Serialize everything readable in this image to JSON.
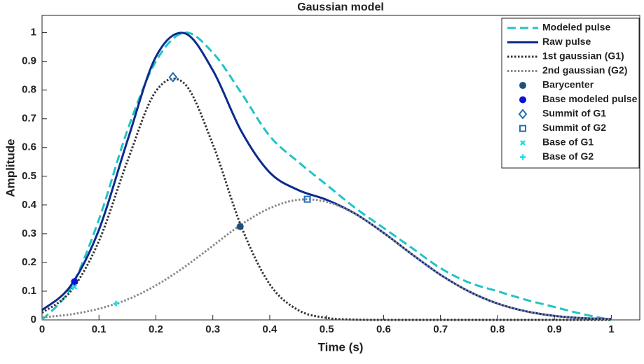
{
  "chart_data": {
    "type": "line",
    "title": "Gaussian model",
    "x_label": "Time (s)",
    "y_label": "Amplitude",
    "xlim": [
      0,
      1.05
    ],
    "ylim": [
      0,
      1.06
    ],
    "xticks": [
      0,
      0.1,
      0.2,
      0.3,
      0.4,
      0.5,
      0.6,
      0.7,
      0.8,
      0.9,
      1
    ],
    "yticks": [
      0,
      0.1,
      0.2,
      0.3,
      0.4,
      0.5,
      0.6,
      0.7,
      0.8,
      0.9,
      1
    ],
    "legend": "upper right",
    "x": [
      0,
      0.05,
      0.1,
      0.15,
      0.2,
      0.25,
      0.3,
      0.35,
      0.4,
      0.45,
      0.5,
      0.55,
      0.6,
      0.65,
      0.7,
      0.75,
      0.8,
      0.85,
      0.9,
      0.95,
      1
    ],
    "series": [
      {
        "name": "Modeled pulse",
        "color": "#22c3c6",
        "style": "dashed",
        "values": [
          0,
          0.11,
          0.35,
          0.66,
          0.9,
          1.0,
          0.93,
          0.79,
          0.64,
          0.55,
          0.47,
          0.39,
          0.32,
          0.25,
          0.18,
          0.13,
          0.1,
          0.07,
          0.045,
          0.02,
          0
        ]
      },
      {
        "name": "Raw pulse",
        "color": "#0b2b8c",
        "style": "solid",
        "values": [
          0.034,
          0.118,
          0.314,
          0.624,
          0.916,
          0.998,
          0.869,
          0.657,
          0.513,
          0.452,
          0.418,
          0.37,
          0.303,
          0.228,
          0.157,
          0.099,
          0.057,
          0.03,
          0.014,
          0.006,
          0.003
        ]
      },
      {
        "name": "1st gaussian (G1)",
        "color": "#333333",
        "style": "dotted",
        "values": [
          0.025,
          0.099,
          0.275,
          0.553,
          0.796,
          0.823,
          0.611,
          0.325,
          0.124,
          0.034,
          0.007,
          0.001,
          0,
          0,
          0,
          0,
          0,
          0,
          0,
          0,
          0
        ]
      },
      {
        "name": "2nd gaussian (G2)",
        "color": "#888888",
        "style": "dotted",
        "values": [
          0.009,
          0.019,
          0.039,
          0.071,
          0.12,
          0.184,
          0.258,
          0.332,
          0.389,
          0.418,
          0.411,
          0.369,
          0.303,
          0.228,
          0.157,
          0.099,
          0.057,
          0.03,
          0.014,
          0.006,
          0.003
        ]
      }
    ],
    "markers": [
      {
        "name": "Barycenter",
        "color": "#1f4e79",
        "marker": "star",
        "x": 0.348,
        "y": 0.325
      },
      {
        "name": "Base modeled pulse",
        "color": "#0a14d4",
        "marker": "circle",
        "x": 0.057,
        "y": 0.133
      },
      {
        "name": "Summit of G1",
        "color": "#1f6fb5",
        "marker": "diamond",
        "x": 0.23,
        "y": 0.845
      },
      {
        "name": "Summit of G2",
        "color": "#1f6fb5",
        "marker": "square",
        "x": 0.466,
        "y": 0.42
      },
      {
        "name": "Base of G1",
        "color": "#11e0f0",
        "marker": "x",
        "x": 0.057,
        "y": 0.115
      },
      {
        "name": "Base of G2",
        "color": "#11e0f0",
        "marker": "plus",
        "x": 0.13,
        "y": 0.057
      }
    ]
  }
}
